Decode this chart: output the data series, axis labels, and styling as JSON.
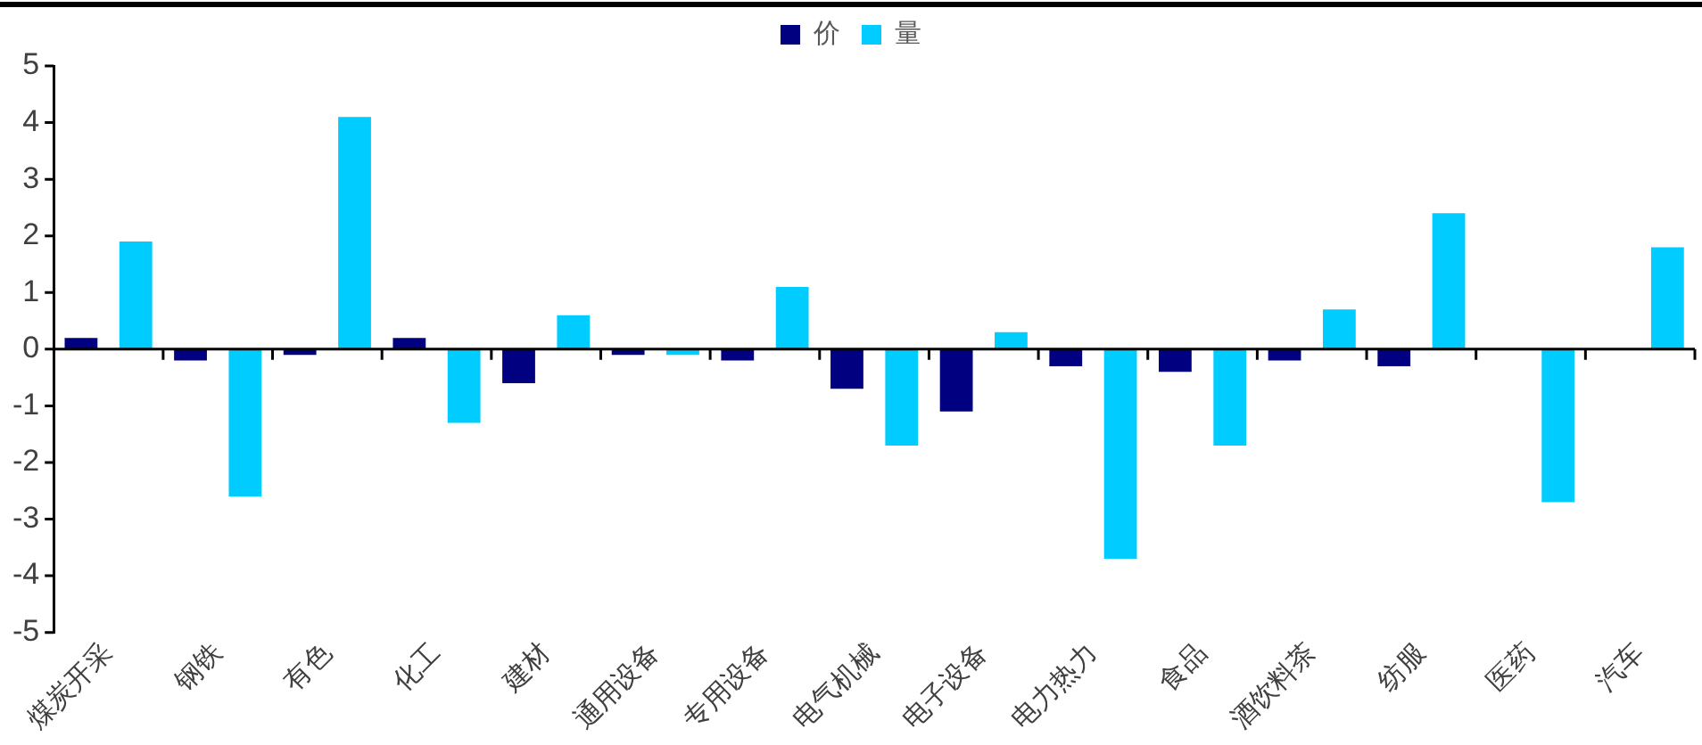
{
  "chart_data": {
    "type": "bar",
    "categories": [
      "煤炭开采",
      "钢铁",
      "有色",
      "化工",
      "建材",
      "通用设备",
      "专用设备",
      "电气机械",
      "电子设备",
      "电力热力",
      "食品",
      "酒饮料茶",
      "纺服",
      "医药",
      "汽车"
    ],
    "series": [
      {
        "name": "价",
        "color": "#000080",
        "values": [
          0.2,
          -0.2,
          -0.1,
          0.2,
          -0.6,
          -0.1,
          -0.2,
          -0.7,
          -1.1,
          -0.3,
          -0.4,
          -0.2,
          -0.3,
          0,
          0
        ]
      },
      {
        "name": "量",
        "color": "#00ccff",
        "values": [
          1.9,
          -2.6,
          4.1,
          -1.3,
          0.6,
          -0.1,
          1.1,
          -1.7,
          0.3,
          -3.7,
          -1.7,
          0.7,
          2.4,
          -2.7,
          1.8
        ]
      }
    ],
    "ylim": [
      -5,
      5
    ],
    "yticks": [
      -5,
      -4,
      -3,
      -2,
      -1,
      0,
      1,
      2,
      3,
      4,
      5
    ],
    "ref_lines": [
      {
        "axis": "y",
        "value": 0,
        "color": "#000000"
      }
    ],
    "grid": false,
    "legend": "top"
  }
}
